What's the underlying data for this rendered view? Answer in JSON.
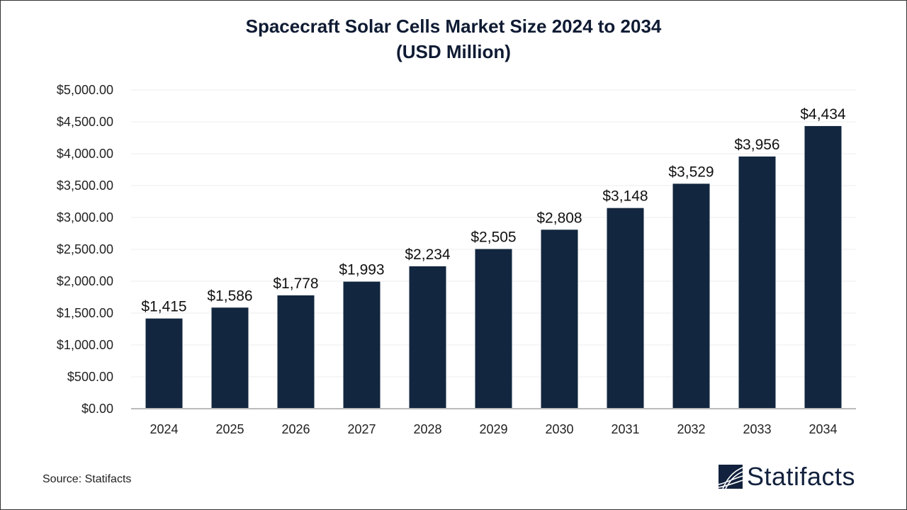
{
  "chart_data": {
    "type": "bar",
    "title": "Spacecraft Solar Cells Market Size 2024 to 2034",
    "subtitle": "(USD Million)",
    "categories": [
      "2024",
      "2025",
      "2026",
      "2027",
      "2028",
      "2029",
      "2030",
      "2031",
      "2032",
      "2033",
      "2034"
    ],
    "values": [
      1415,
      1586,
      1778,
      1993,
      2234,
      2505,
      2808,
      3148,
      3529,
      3956,
      4434
    ],
    "data_labels": [
      "$1,415",
      "$1,586",
      "$1,778",
      "$1,993",
      "$2,234",
      "$2,505",
      "$2,808",
      "$3,148",
      "$3,529",
      "$3,956",
      "$4,434"
    ],
    "ylim": [
      0,
      5000
    ],
    "yticks": [
      0,
      500,
      1000,
      1500,
      2000,
      2500,
      3000,
      3500,
      4000,
      4500,
      5000
    ],
    "ytick_labels": [
      "$0.00",
      "$500.00",
      "$1,000.00",
      "$1,500.00",
      "$2,000.00",
      "$2,500.00",
      "$3,000.00",
      "$3,500.00",
      "$4,000.00",
      "$4,500.00",
      "$5,000.00"
    ],
    "grid": true,
    "bar_color": "#12263f",
    "xlabel": "",
    "ylabel": ""
  },
  "source": "Source: Statifacts",
  "logo": {
    "text": "Statifacts",
    "color": "#12213d"
  }
}
